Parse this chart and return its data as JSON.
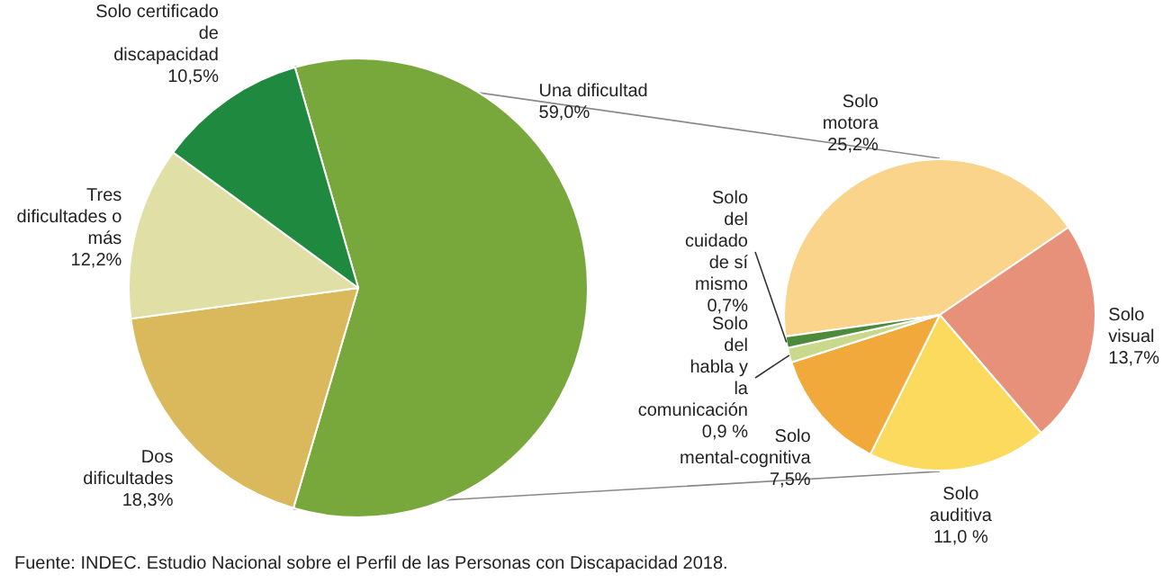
{
  "chart_data": [
    {
      "type": "pie",
      "categories": [
        "Una dificultad",
        "Dos dificultades",
        "Tres dificultades o más",
        "Solo certificado de discapacidad"
      ],
      "values": [
        59.0,
        18.3,
        12.2,
        10.5
      ],
      "colors": [
        "#78a83c",
        "#d9b95c",
        "#dfdfa6",
        "#1f8a3f"
      ],
      "value_labels": [
        "59,0%",
        "18,3%",
        "12,2%",
        "10,5%"
      ],
      "annotations": [
        "Fuente: INDEC. Estudio Nacional sobre el Perfil de las Personas con Discapacidad 2018."
      ]
    },
    {
      "type": "pie",
      "categories": [
        "Solo motora",
        "Solo visual",
        "Solo auditiva",
        "Solo mental-cognitiva",
        "Solo del habla y la comunicación",
        "Solo del cuidado de sí mismo"
      ],
      "values": [
        25.2,
        13.7,
        11.0,
        7.5,
        0.9,
        0.7
      ],
      "colors": [
        "#f9d48a",
        "#e8917a",
        "#fbda5e",
        "#f2a93c",
        "#c9d98c",
        "#4e8a3c"
      ],
      "value_labels": [
        "25,2%",
        "13,7%",
        "11,0 %",
        "7,5%",
        "0,9 %",
        "0,7%"
      ]
    }
  ]
}
